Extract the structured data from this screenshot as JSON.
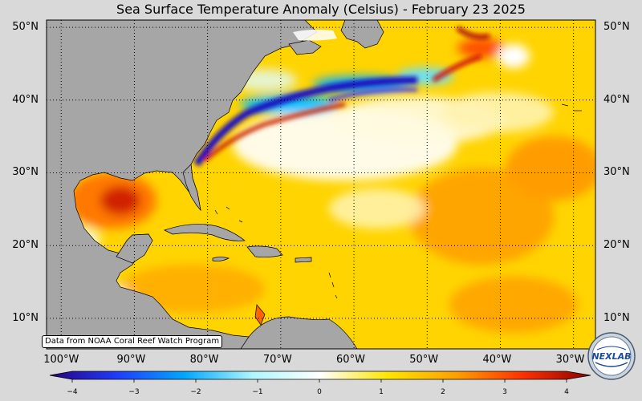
{
  "title": "Sea Surface Temperature Anomaly (Celsius) - February 23 2025",
  "credit": "Data from NOAA Coral Reef Watch Program",
  "map": {
    "lon_range": [
      -102,
      -27
    ],
    "lat_range": [
      5.8,
      51
    ],
    "lat_ticks": [
      {
        "value": 10,
        "label": "10°N"
      },
      {
        "value": 20,
        "label": "20°N"
      },
      {
        "value": 30,
        "label": "30°N"
      },
      {
        "value": 40,
        "label": "40°N"
      },
      {
        "value": 50,
        "label": "50°N"
      }
    ],
    "lon_ticks": [
      {
        "value": -100,
        "label": "100°W"
      },
      {
        "value": -90,
        "label": "90°W"
      },
      {
        "value": -80,
        "label": "80°W"
      },
      {
        "value": -70,
        "label": "70°W"
      },
      {
        "value": -60,
        "label": "60°W"
      },
      {
        "value": -50,
        "label": "50°W"
      },
      {
        "value": -40,
        "label": "40°W"
      },
      {
        "value": -30,
        "label": "30°W"
      }
    ],
    "land_color": "#a6a6a6",
    "gridlines": "dotted"
  },
  "colorbar": {
    "range": [
      -4,
      4
    ],
    "ticks": [
      {
        "value": -4,
        "label": "−4"
      },
      {
        "value": -3,
        "label": "−3"
      },
      {
        "value": -2,
        "label": "−2"
      },
      {
        "value": -1,
        "label": "−1"
      },
      {
        "value": 0,
        "label": "0"
      },
      {
        "value": 1,
        "label": "1"
      },
      {
        "value": 2,
        "label": "2"
      },
      {
        "value": 3,
        "label": "3"
      },
      {
        "value": 4,
        "label": "4"
      }
    ],
    "colors": [
      "#2a0080",
      "#1f3cff",
      "#00a8ff",
      "#aef6ff",
      "#ffffff",
      "#ffe600",
      "#ffa000",
      "#ff3000",
      "#8a0000"
    ]
  },
  "logo_text": "NEXLAB"
}
